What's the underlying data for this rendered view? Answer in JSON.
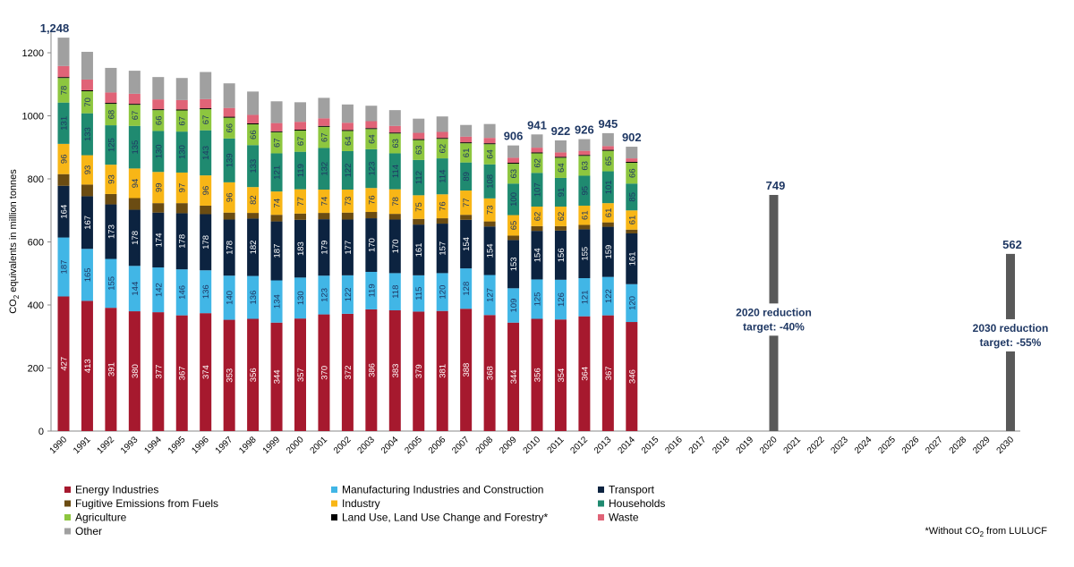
{
  "chart_data": {
    "type": "stacked_bar",
    "ylabel": [
      "CO",
      "2",
      " equivalents in million tonnes"
    ],
    "footnote": [
      "*Without CO",
      "2",
      " from LULUCF"
    ],
    "categories": [
      "1990",
      "1991",
      "1992",
      "1993",
      "1994",
      "1995",
      "1996",
      "1997",
      "1998",
      "1999",
      "2000",
      "2001",
      "2002",
      "2003",
      "2004",
      "2005",
      "2006",
      "2007",
      "2008",
      "2009",
      "2010",
      "2011",
      "2012",
      "2013",
      "2014",
      "2015",
      "2016",
      "2017",
      "2018",
      "2019",
      "2020",
      "2021",
      "2022",
      "2023",
      "2024",
      "2025",
      "2026",
      "2027",
      "2028",
      "2029",
      "2030"
    ],
    "ylim": [
      0,
      1300
    ],
    "yticks": [
      0,
      200,
      400,
      600,
      800,
      1000,
      1200
    ],
    "grid": false,
    "series": [
      {
        "name": "Energy Industries",
        "color": "#a6192e",
        "label_color": "#ffffff",
        "show_labels": true,
        "values": [
          427,
          413,
          391,
          380,
          377,
          367,
          374,
          353,
          356,
          344,
          357,
          370,
          372,
          386,
          383,
          379,
          381,
          388,
          368,
          344,
          356,
          354,
          364,
          367,
          346,
          null,
          null,
          null,
          null,
          null,
          null,
          null,
          null,
          null,
          null,
          null,
          null,
          null,
          null,
          null,
          null
        ]
      },
      {
        "name": "Manufacturing Industries and Construction",
        "color": "#41b6e6",
        "label_color": "#1f3864",
        "show_labels": true,
        "values": [
          187,
          165,
          155,
          144,
          142,
          146,
          136,
          140,
          136,
          134,
          130,
          123,
          122,
          119,
          118,
          115,
          120,
          128,
          127,
          109,
          125,
          126,
          121,
          122,
          120,
          null,
          null,
          null,
          null,
          null,
          null,
          null,
          null,
          null,
          null,
          null,
          null,
          null,
          null,
          null,
          null
        ]
      },
      {
        "name": "Transport",
        "color": "#0c2340",
        "label_color": "#ffffff",
        "show_labels": true,
        "values": [
          164,
          167,
          173,
          178,
          174,
          178,
          178,
          178,
          182,
          187,
          183,
          179,
          177,
          170,
          170,
          161,
          157,
          154,
          154,
          153,
          154,
          156,
          155,
          159,
          161,
          null,
          null,
          null,
          null,
          null,
          null,
          null,
          null,
          null,
          null,
          null,
          null,
          null,
          null,
          null,
          null
        ]
      },
      {
        "name": "Fugitive Emissions from Fuels",
        "color": "#6b4c12",
        "show_labels": false,
        "values": [
          37,
          37,
          33,
          37,
          30,
          32,
          27,
          22,
          18,
          21,
          20,
          20,
          22,
          20,
          18,
          18,
          17,
          16,
          16,
          14,
          15,
          14,
          14,
          14,
          12,
          null,
          null,
          null,
          null,
          null,
          null,
          null,
          null,
          null,
          null,
          null,
          null,
          null,
          null,
          null,
          null
        ]
      },
      {
        "name": "Industry",
        "color": "#f8b616",
        "label_color": "#1f3864",
        "show_labels": true,
        "values": [
          96,
          93,
          93,
          94,
          99,
          97,
          96,
          96,
          82,
          74,
          77,
          74,
          73,
          76,
          78,
          75,
          76,
          77,
          73,
          65,
          62,
          62,
          61,
          61,
          61,
          null,
          null,
          null,
          null,
          null,
          null,
          null,
          null,
          null,
          null,
          null,
          null,
          null,
          null,
          null,
          null
        ]
      },
      {
        "name": "Households",
        "color": "#1f8a70",
        "label_color": "#1f3864",
        "show_labels": true,
        "values": [
          131,
          133,
          125,
          135,
          130,
          130,
          143,
          139,
          133,
          121,
          119,
          132,
          122,
          123,
          114,
          112,
          114,
          89,
          108,
          100,
          107,
          91,
          95,
          101,
          85,
          null,
          null,
          null,
          null,
          null,
          null,
          null,
          null,
          null,
          null,
          null,
          null,
          null,
          null,
          null,
          null
        ]
      },
      {
        "name": "Agriculture",
        "color": "#8dc63f",
        "label_color": "#1f3864",
        "show_labels": true,
        "values": [
          78,
          70,
          68,
          67,
          66,
          67,
          67,
          66,
          66,
          67,
          67,
          67,
          64,
          64,
          63,
          63,
          62,
          61,
          64,
          63,
          62,
          64,
          63,
          65,
          66,
          null,
          null,
          null,
          null,
          null,
          null,
          null,
          null,
          null,
          null,
          null,
          null,
          null,
          null,
          null,
          null
        ]
      },
      {
        "name": "Land Use, Land Use Change and Forestry*",
        "color": "#000000",
        "show_labels": false,
        "values": [
          3,
          3,
          3,
          3,
          3,
          3,
          3,
          3,
          3,
          3,
          3,
          3,
          3,
          3,
          3,
          3,
          3,
          3,
          3,
          3,
          3,
          3,
          3,
          3,
          3,
          null,
          null,
          null,
          null,
          null,
          null,
          null,
          null,
          null,
          null,
          null,
          null,
          null,
          null,
          null,
          null
        ]
      },
      {
        "name": "Waste",
        "color": "#e06377",
        "show_labels": false,
        "values": [
          35,
          34,
          33,
          32,
          31,
          30,
          29,
          28,
          27,
          26,
          25,
          24,
          23,
          22,
          21,
          20,
          19,
          18,
          17,
          16,
          15,
          14,
          13,
          12,
          11,
          null,
          null,
          null,
          null,
          null,
          null,
          null,
          null,
          null,
          null,
          null,
          null,
          null,
          null,
          null,
          null
        ]
      },
      {
        "name": "Other",
        "color": "#a0a0a0",
        "show_labels": false,
        "values": [
          90,
          88,
          78,
          73,
          71,
          70,
          86,
          78,
          74,
          69,
          62,
          65,
          58,
          49,
          50,
          45,
          49,
          37,
          44,
          39,
          42,
          38,
          37,
          41,
          37,
          null,
          null,
          null,
          null,
          null,
          null,
          null,
          null,
          null,
          null,
          null,
          null,
          null,
          null,
          null,
          null
        ]
      }
    ],
    "totals": [
      1248,
      null,
      null,
      null,
      null,
      null,
      null,
      null,
      null,
      null,
      null,
      null,
      null,
      null,
      null,
      null,
      null,
      null,
      null,
      906,
      941,
      922,
      926,
      945,
      902,
      null,
      null,
      null,
      null,
      null,
      null,
      null,
      null,
      null,
      null,
      null,
      null,
      null,
      null,
      null,
      null
    ],
    "total_labels": [
      "1,248",
      null,
      null,
      null,
      null,
      null,
      null,
      null,
      null,
      null,
      null,
      null,
      null,
      null,
      null,
      null,
      null,
      null,
      null,
      "906",
      "941",
      "922",
      "926",
      "945",
      "902",
      null,
      null,
      null,
      null,
      null,
      null,
      null,
      null,
      null,
      null,
      null,
      null,
      null,
      null,
      null,
      null
    ],
    "targets": {
      "color": "#595959",
      "values": [
        null,
        null,
        null,
        null,
        null,
        null,
        null,
        null,
        null,
        null,
        null,
        null,
        null,
        null,
        null,
        null,
        null,
        null,
        null,
        null,
        null,
        null,
        null,
        null,
        null,
        null,
        null,
        null,
        null,
        null,
        749,
        null,
        null,
        null,
        null,
        null,
        null,
        null,
        null,
        null,
        562
      ]
    },
    "annotations": [
      {
        "category": 30,
        "lines": [
          "2020 reduction",
          "target: -40%"
        ],
        "y": 365
      },
      {
        "category": 40,
        "lines": [
          "2030 reduction",
          "target: -55%"
        ],
        "y": 315
      }
    ]
  }
}
